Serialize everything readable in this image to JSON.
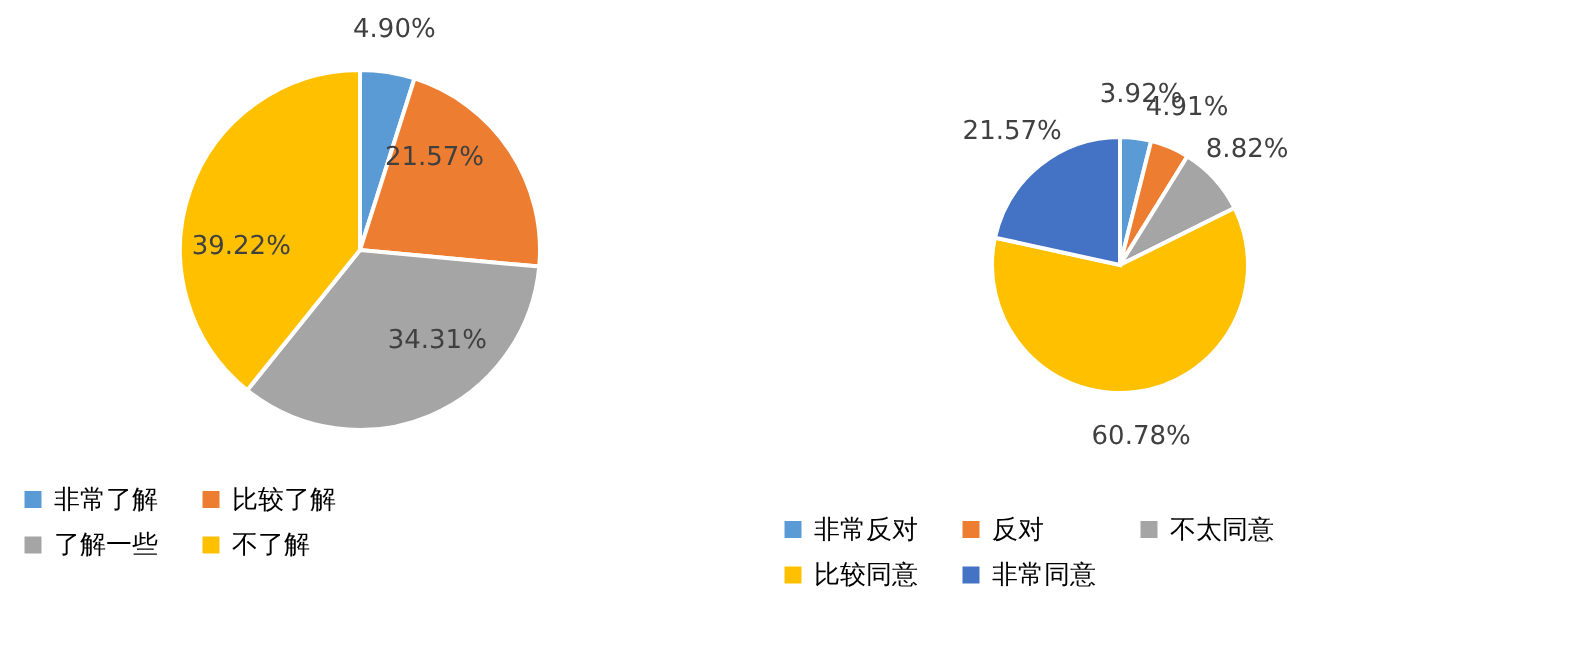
{
  "chart_data": [
    {
      "type": "pie",
      "categories": [
        "非常了解",
        "比较了解",
        "了解一些",
        "不了解"
      ],
      "values": [
        4.9,
        21.57,
        34.31,
        39.22
      ],
      "colors": [
        "#5b9bd5",
        "#ed7d31",
        "#a5a5a5",
        "#ffc000"
      ],
      "value_labels": [
        "4.90%",
        "21.57%",
        "34.31%",
        "39.22%"
      ],
      "legend": "bottom"
    },
    {
      "type": "pie",
      "categories": [
        "非常反对",
        "反对",
        "不太同意",
        "比较同意",
        "非常同意"
      ],
      "values": [
        3.92,
        4.91,
        8.82,
        60.78,
        21.57
      ],
      "colors": [
        "#5b9bd5",
        "#ed7d31",
        "#a5a5a5",
        "#ffc000",
        "#4472c4"
      ],
      "value_labels": [
        "3.92%",
        "4.91%",
        "8.82%",
        "60.78%",
        "21.57%"
      ],
      "legend": "bottom"
    }
  ]
}
